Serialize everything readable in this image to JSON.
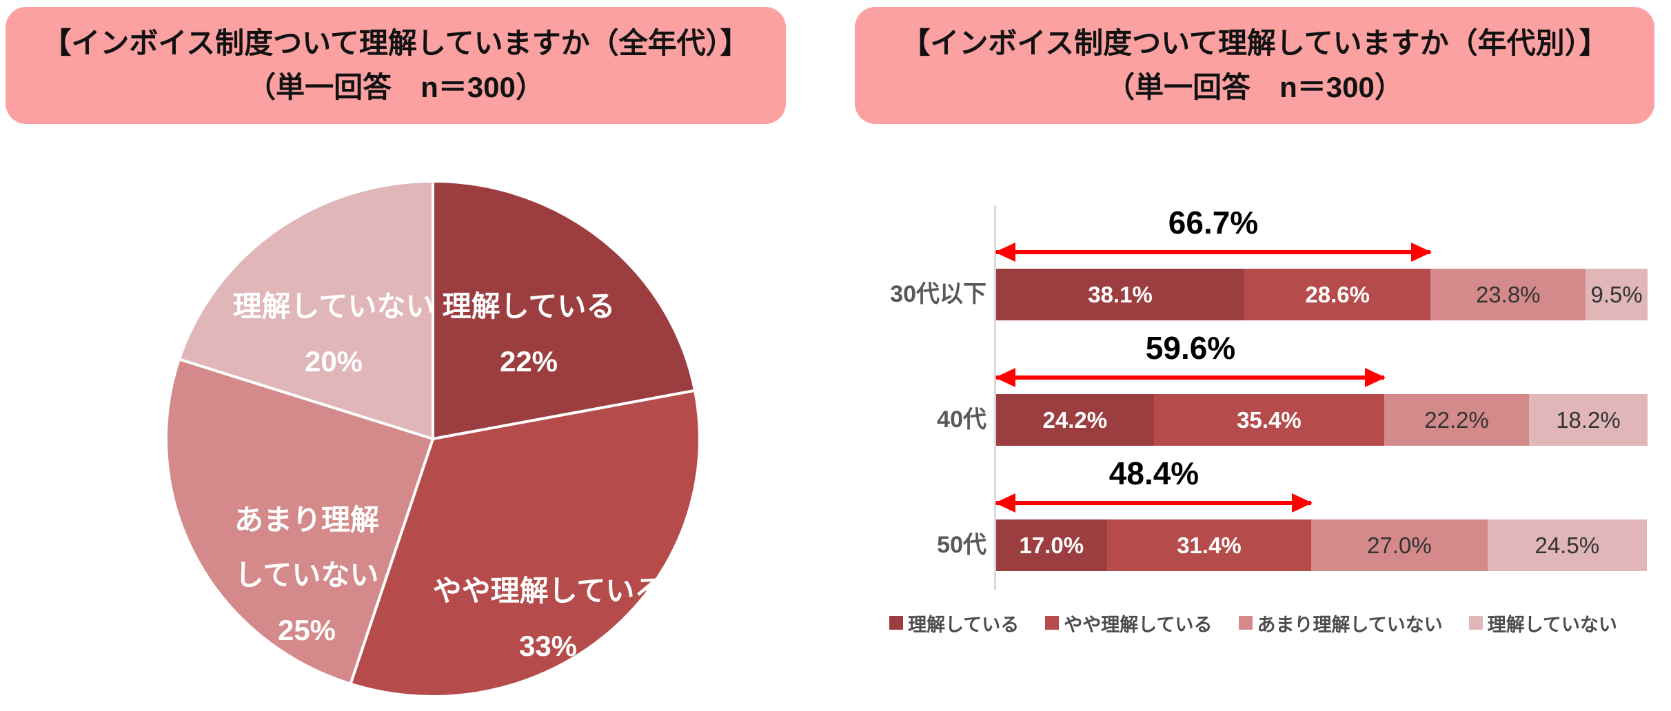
{
  "left_panel": {
    "title_line1": "【インボイス制度ついて理解していますか（全年代）】",
    "title_line2": "（単一回答　n＝300）"
  },
  "right_panel": {
    "title_line1": "【インボイス制度ついて理解していますか（年代別）】",
    "title_line2": "（単一回答　n＝300）"
  },
  "colors": {
    "header_pink": "#fba1a2",
    "series": [
      "#9c3d3f",
      "#b54b4a",
      "#d48a8b",
      "#e0b6b8"
    ],
    "arrow_red": "#fe0000",
    "axis_gray": "#d9d9d9",
    "white_divider": "#ffffff"
  },
  "chart_data": [
    {
      "type": "pie",
      "title": "【インボイス制度ついて理解していますか（全年代）】",
      "subtitle": "（単一回答　n＝300）",
      "direction": "clockwise",
      "start_angle_deg": 0,
      "slices": [
        {
          "label": "理解している",
          "label_lines": [
            "理解している"
          ],
          "value": 22,
          "value_label": "22%",
          "color": "#9c3d3f"
        },
        {
          "label": "やや理解している",
          "label_lines": [
            "やや理解している"
          ],
          "value": 33,
          "value_label": "33%",
          "color": "#b54b4a"
        },
        {
          "label": "あまり理解していない",
          "label_lines": [
            "あまり理解",
            "していない"
          ],
          "value": 25,
          "value_label": "25%",
          "color": "#d48a8b"
        },
        {
          "label": "理解していない",
          "label_lines": [
            "理解していない"
          ],
          "value": 20,
          "value_label": "20%",
          "color": "#e0b6b8"
        }
      ]
    },
    {
      "type": "stacked_bar_horizontal",
      "title": "【インボイス制度ついて理解していますか（年代別）】",
      "subtitle": "（単一回答　n＝300）",
      "xlim": [
        0,
        100
      ],
      "categories": [
        "30代以下",
        "40代",
        "50代"
      ],
      "series": [
        {
          "name": "理解している",
          "color": "#9c3d3f",
          "values": [
            38.1,
            24.2,
            17.0
          ],
          "value_labels": [
            "38.1%",
            "24.2%",
            "17.0%"
          ]
        },
        {
          "name": "やや理解している",
          "color": "#b54b4a",
          "values": [
            28.6,
            35.4,
            31.4
          ],
          "value_labels": [
            "28.6%",
            "35.4%",
            "31.4%"
          ]
        },
        {
          "name": "あまり理解していない",
          "color": "#d48a8b",
          "values": [
            23.8,
            22.2,
            27.0
          ],
          "value_labels": [
            "23.8%",
            "22.2%",
            "27.0%"
          ]
        },
        {
          "name": "理解していない",
          "color": "#e0b6b8",
          "values": [
            9.5,
            18.2,
            24.5
          ],
          "value_labels": [
            "9.5%",
            "18.2%",
            "24.5%"
          ]
        }
      ],
      "annotations": [
        {
          "category": "30代以下",
          "span_pct": 66.7,
          "label": "66.7%"
        },
        {
          "category": "40代",
          "span_pct": 59.6,
          "label": "59.6%"
        },
        {
          "category": "50代",
          "span_pct": 48.4,
          "label": "48.4%"
        }
      ],
      "legend": [
        "理解している",
        "やや理解している",
        "あまり理解していない",
        "理解していない"
      ],
      "legend_position": "bottom"
    }
  ]
}
